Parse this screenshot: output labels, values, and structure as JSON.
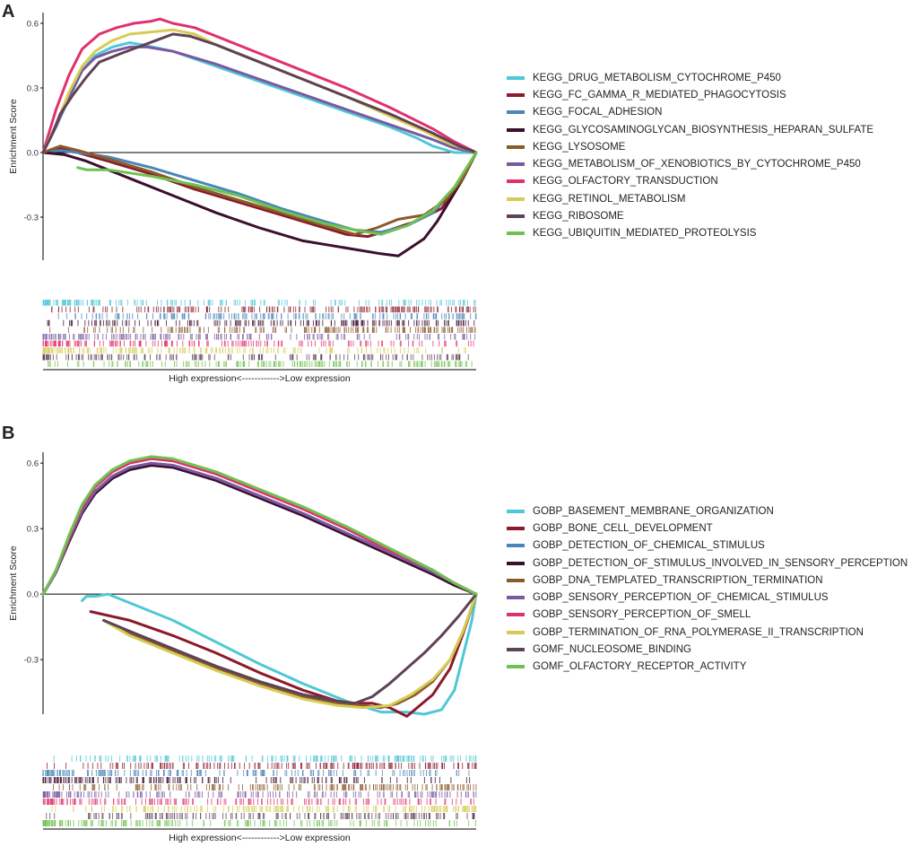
{
  "chart_data": [
    {
      "panel_label": "A",
      "type": "line",
      "ylabel": "Enrichment Score",
      "xlabel": "High expression<------------>Low expression",
      "ylim": [
        -0.5,
        0.65
      ],
      "xlim": [
        0,
        1
      ],
      "yticks": [
        "0.6",
        "0.3",
        "0.0",
        "-0.3"
      ],
      "legend_position": "right",
      "grid": false,
      "series": [
        {
          "name": "KEGG_DRUG_METABOLISM_CYTOCHROME_P450",
          "color": "#4fc8d6",
          "x": [
            0,
            0.03,
            0.06,
            0.09,
            0.12,
            0.16,
            0.2,
            0.23,
            0.3,
            0.4,
            0.5,
            0.6,
            0.7,
            0.8,
            0.86,
            0.9,
            0.95,
            1.0
          ],
          "y": [
            0,
            0.12,
            0.25,
            0.38,
            0.45,
            0.49,
            0.51,
            0.5,
            0.47,
            0.4,
            0.33,
            0.26,
            0.19,
            0.12,
            0.07,
            0.03,
            0.0,
            0.0
          ]
        },
        {
          "name": "KEGG_FC_GAMMA_R_MEDIATED_PHAGOCYTOSIS",
          "color": "#8b1a2b",
          "x": [
            0,
            0.04,
            0.08,
            0.15,
            0.25,
            0.35,
            0.45,
            0.55,
            0.65,
            0.7,
            0.75,
            0.8,
            0.86,
            0.92,
            0.96,
            1.0
          ],
          "y": [
            0.0,
            0.02,
            0.0,
            -0.04,
            -0.1,
            -0.17,
            -0.23,
            -0.29,
            -0.35,
            -0.38,
            -0.39,
            -0.36,
            -0.32,
            -0.26,
            -0.15,
            0.0
          ]
        },
        {
          "name": "KEGG_FOCAL_ADHESION",
          "color": "#4a86b8",
          "x": [
            0,
            0.04,
            0.08,
            0.15,
            0.25,
            0.35,
            0.45,
            0.55,
            0.65,
            0.72,
            0.78,
            0.84,
            0.9,
            0.95,
            1.0
          ],
          "y": [
            0.0,
            0.01,
            0.0,
            -0.02,
            -0.07,
            -0.13,
            -0.19,
            -0.26,
            -0.32,
            -0.36,
            -0.37,
            -0.34,
            -0.28,
            -0.17,
            0.0
          ]
        },
        {
          "name": "KEGG_GLYCOSAMINOGLYCAN_BIOSYNTHESIS_HEPARAN_SULFATE",
          "color": "#3b0f2e",
          "x": [
            0,
            0.05,
            0.1,
            0.2,
            0.3,
            0.4,
            0.5,
            0.6,
            0.66,
            0.72,
            0.78,
            0.82,
            0.85,
            0.88,
            0.91,
            0.94,
            0.97,
            1.0
          ],
          "y": [
            0.0,
            -0.01,
            -0.04,
            -0.12,
            -0.2,
            -0.28,
            -0.35,
            -0.41,
            -0.43,
            -0.45,
            -0.47,
            -0.48,
            -0.44,
            -0.4,
            -0.32,
            -0.22,
            -0.12,
            0.0
          ]
        },
        {
          "name": "KEGG_LYSOSOME",
          "color": "#8b5a2b",
          "x": [
            0,
            0.04,
            0.08,
            0.15,
            0.25,
            0.35,
            0.45,
            0.55,
            0.65,
            0.72,
            0.77,
            0.82,
            0.88,
            0.93,
            0.97,
            1.0
          ],
          "y": [
            0.0,
            0.03,
            0.01,
            -0.03,
            -0.09,
            -0.16,
            -0.22,
            -0.28,
            -0.34,
            -0.38,
            -0.35,
            -0.31,
            -0.29,
            -0.22,
            -0.12,
            0.0
          ]
        },
        {
          "name": "KEGG_METABOLISM_OF_XENOBIOTICS_BY_CYTOCHROME_P450",
          "color": "#7a5a9e",
          "x": [
            0,
            0.03,
            0.06,
            0.09,
            0.12,
            0.16,
            0.2,
            0.24,
            0.3,
            0.4,
            0.5,
            0.6,
            0.7,
            0.8,
            0.9,
            0.95,
            1.0
          ],
          "y": [
            0,
            0.12,
            0.26,
            0.38,
            0.44,
            0.47,
            0.49,
            0.49,
            0.47,
            0.41,
            0.34,
            0.27,
            0.2,
            0.13,
            0.06,
            0.02,
            0.0
          ]
        },
        {
          "name": "KEGG_OLFACTORY_TRANSDUCTION",
          "color": "#e0316e",
          "x": [
            0,
            0.03,
            0.06,
            0.09,
            0.13,
            0.17,
            0.21,
            0.25,
            0.27,
            0.3,
            0.35,
            0.4,
            0.5,
            0.6,
            0.7,
            0.8,
            0.9,
            0.95,
            1.0
          ],
          "y": [
            0,
            0.2,
            0.36,
            0.48,
            0.55,
            0.58,
            0.6,
            0.61,
            0.62,
            0.6,
            0.58,
            0.54,
            0.46,
            0.38,
            0.3,
            0.21,
            0.11,
            0.05,
            0.0
          ]
        },
        {
          "name": "KEGG_RETINOL_METABOLISM",
          "color": "#d6cc55",
          "x": [
            0,
            0.03,
            0.06,
            0.09,
            0.12,
            0.16,
            0.2,
            0.25,
            0.3,
            0.35,
            0.4,
            0.5,
            0.6,
            0.7,
            0.8,
            0.88,
            0.94,
            1.0
          ],
          "y": [
            0,
            0.13,
            0.28,
            0.4,
            0.47,
            0.52,
            0.55,
            0.56,
            0.57,
            0.55,
            0.5,
            0.42,
            0.34,
            0.26,
            0.17,
            0.1,
            0.04,
            0.0
          ]
        },
        {
          "name": "KEGG_RIBOSOME",
          "color": "#5e4256",
          "x": [
            0,
            0.02,
            0.04,
            0.07,
            0.1,
            0.13,
            0.18,
            0.22,
            0.26,
            0.3,
            0.34,
            0.4,
            0.5,
            0.6,
            0.7,
            0.8,
            0.9,
            0.96,
            1.0
          ],
          "y": [
            0,
            0.08,
            0.18,
            0.27,
            0.35,
            0.42,
            0.46,
            0.49,
            0.52,
            0.55,
            0.54,
            0.5,
            0.42,
            0.34,
            0.26,
            0.18,
            0.09,
            0.03,
            0.0
          ]
        },
        {
          "name": "KEGG_UBIQUITIN_MEDIATED_PROTEOLYSIS",
          "color": "#6fc24f",
          "x": [
            0.08,
            0.1,
            0.15,
            0.25,
            0.35,
            0.45,
            0.55,
            0.65,
            0.72,
            0.78,
            0.84,
            0.9,
            0.95,
            1.0
          ],
          "y": [
            -0.07,
            -0.08,
            -0.08,
            -0.11,
            -0.15,
            -0.2,
            -0.27,
            -0.33,
            -0.36,
            -0.38,
            -0.34,
            -0.27,
            -0.16,
            0.0
          ]
        }
      ],
      "barcode_rows": 10
    },
    {
      "panel_label": "B",
      "type": "line",
      "ylabel": "Enrichment Score",
      "xlabel": "High expression<------------>Low expression",
      "ylim": [
        -0.55,
        0.65
      ],
      "xlim": [
        0,
        1
      ],
      "yticks": [
        "0.6",
        "0.3",
        "0.0",
        "-0.3"
      ],
      "legend_position": "right",
      "grid": false,
      "series": [
        {
          "name": "GOBP_BASEMENT_MEMBRANE_ORGANIZATION",
          "color": "#4fc8d6",
          "x": [
            0.09,
            0.1,
            0.12,
            0.15,
            0.2,
            0.3,
            0.4,
            0.5,
            0.6,
            0.7,
            0.78,
            0.84,
            0.88,
            0.92,
            0.95,
            0.97,
            0.99,
            1.0
          ],
          "y": [
            -0.03,
            -0.01,
            -0.01,
            0.0,
            -0.04,
            -0.12,
            -0.22,
            -0.32,
            -0.41,
            -0.49,
            -0.54,
            -0.54,
            -0.55,
            -0.53,
            -0.44,
            -0.28,
            -0.12,
            0.0
          ]
        },
        {
          "name": "GOBP_BONE_CELL_DEVELOPMENT",
          "color": "#8b1a2b",
          "x": [
            0.11,
            0.2,
            0.3,
            0.4,
            0.5,
            0.6,
            0.68,
            0.72,
            0.76,
            0.8,
            0.84,
            0.9,
            0.94,
            0.97,
            1.0
          ],
          "y": [
            -0.08,
            -0.12,
            -0.19,
            -0.27,
            -0.36,
            -0.44,
            -0.49,
            -0.5,
            -0.5,
            -0.52,
            -0.56,
            -0.46,
            -0.34,
            -0.18,
            0.0
          ]
        },
        {
          "name": "GOBP_DETECTION_OF_CHEMICAL_STIMULUS",
          "color": "#4a86b8",
          "x": [
            0,
            0.03,
            0.06,
            0.09,
            0.12,
            0.16,
            0.2,
            0.25,
            0.3,
            0.4,
            0.5,
            0.6,
            0.7,
            0.8,
            0.9,
            0.95,
            1.0
          ],
          "y": [
            0,
            0.1,
            0.25,
            0.38,
            0.47,
            0.54,
            0.58,
            0.6,
            0.59,
            0.53,
            0.45,
            0.37,
            0.28,
            0.19,
            0.1,
            0.05,
            0.0
          ]
        },
        {
          "name": "GOBP_DETECTION_OF_STIMULUS_INVOLVED_IN_SENSORY_PERCEPTION",
          "color": "#3b0f2e",
          "x": [
            0,
            0.03,
            0.06,
            0.09,
            0.12,
            0.16,
            0.2,
            0.25,
            0.3,
            0.4,
            0.5,
            0.6,
            0.7,
            0.8,
            0.9,
            0.95,
            1.0
          ],
          "y": [
            0,
            0.1,
            0.24,
            0.37,
            0.46,
            0.53,
            0.57,
            0.59,
            0.58,
            0.52,
            0.44,
            0.36,
            0.27,
            0.18,
            0.09,
            0.04,
            0.0
          ]
        },
        {
          "name": "GOBP_DNA_TEMPLATED_TRANSCRIPTION_TERMINATION",
          "color": "#8b5a2b",
          "x": [
            0.14,
            0.2,
            0.3,
            0.4,
            0.5,
            0.6,
            0.68,
            0.74,
            0.78,
            0.82,
            0.86,
            0.9,
            0.94,
            0.97,
            1.0
          ],
          "y": [
            -0.12,
            -0.18,
            -0.26,
            -0.34,
            -0.41,
            -0.47,
            -0.5,
            -0.51,
            -0.52,
            -0.5,
            -0.46,
            -0.4,
            -0.3,
            -0.17,
            0.0
          ]
        },
        {
          "name": "GOBP_SENSORY_PERCEPTION_OF_CHEMICAL_STIMULUS",
          "color": "#7a5a9e",
          "x": [
            0,
            0.03,
            0.06,
            0.09,
            0.12,
            0.16,
            0.2,
            0.25,
            0.3,
            0.4,
            0.5,
            0.6,
            0.7,
            0.8,
            0.9,
            0.95,
            1.0
          ],
          "y": [
            0,
            0.1,
            0.25,
            0.38,
            0.47,
            0.54,
            0.58,
            0.6,
            0.59,
            0.53,
            0.45,
            0.37,
            0.28,
            0.19,
            0.1,
            0.05,
            0.0
          ]
        },
        {
          "name": "GOBP_SENSORY_PERCEPTION_OF_SMELL",
          "color": "#e0316e",
          "x": [
            0,
            0.03,
            0.06,
            0.09,
            0.12,
            0.16,
            0.2,
            0.25,
            0.3,
            0.4,
            0.5,
            0.6,
            0.7,
            0.8,
            0.9,
            0.95,
            1.0
          ],
          "y": [
            0,
            0.11,
            0.26,
            0.4,
            0.49,
            0.56,
            0.6,
            0.62,
            0.61,
            0.55,
            0.47,
            0.39,
            0.3,
            0.2,
            0.11,
            0.05,
            0.0
          ]
        },
        {
          "name": "GOBP_TERMINATION_OF_RNA_POLYMERASE_II_TRANSCRIPTION",
          "color": "#d6cc55",
          "x": [
            0.14,
            0.2,
            0.3,
            0.4,
            0.5,
            0.6,
            0.68,
            0.74,
            0.8,
            0.85,
            0.9,
            0.94,
            0.97,
            1.0
          ],
          "y": [
            -0.12,
            -0.19,
            -0.27,
            -0.35,
            -0.42,
            -0.48,
            -0.51,
            -0.52,
            -0.51,
            -0.46,
            -0.39,
            -0.3,
            -0.17,
            0.0
          ]
        },
        {
          "name": "GOMF_NUCLEOSOME_BINDING",
          "color": "#5e4256",
          "x": [
            0.14,
            0.2,
            0.3,
            0.4,
            0.5,
            0.6,
            0.68,
            0.72,
            0.76,
            0.8,
            0.84,
            0.88,
            0.92,
            0.96,
            1.0
          ],
          "y": [
            -0.12,
            -0.17,
            -0.25,
            -0.33,
            -0.4,
            -0.46,
            -0.49,
            -0.5,
            -0.47,
            -0.41,
            -0.34,
            -0.27,
            -0.19,
            -0.1,
            0.0
          ]
        },
        {
          "name": "GOMF_OLFACTORY_RECEPTOR_ACTIVITY",
          "color": "#6fc24f",
          "x": [
            0,
            0.03,
            0.06,
            0.09,
            0.12,
            0.16,
            0.2,
            0.25,
            0.3,
            0.4,
            0.5,
            0.6,
            0.7,
            0.8,
            0.9,
            0.95,
            1.0
          ],
          "y": [
            0,
            0.11,
            0.27,
            0.41,
            0.5,
            0.57,
            0.61,
            0.63,
            0.62,
            0.56,
            0.48,
            0.4,
            0.31,
            0.21,
            0.11,
            0.05,
            0.0
          ]
        }
      ],
      "barcode_rows": 10
    }
  ]
}
